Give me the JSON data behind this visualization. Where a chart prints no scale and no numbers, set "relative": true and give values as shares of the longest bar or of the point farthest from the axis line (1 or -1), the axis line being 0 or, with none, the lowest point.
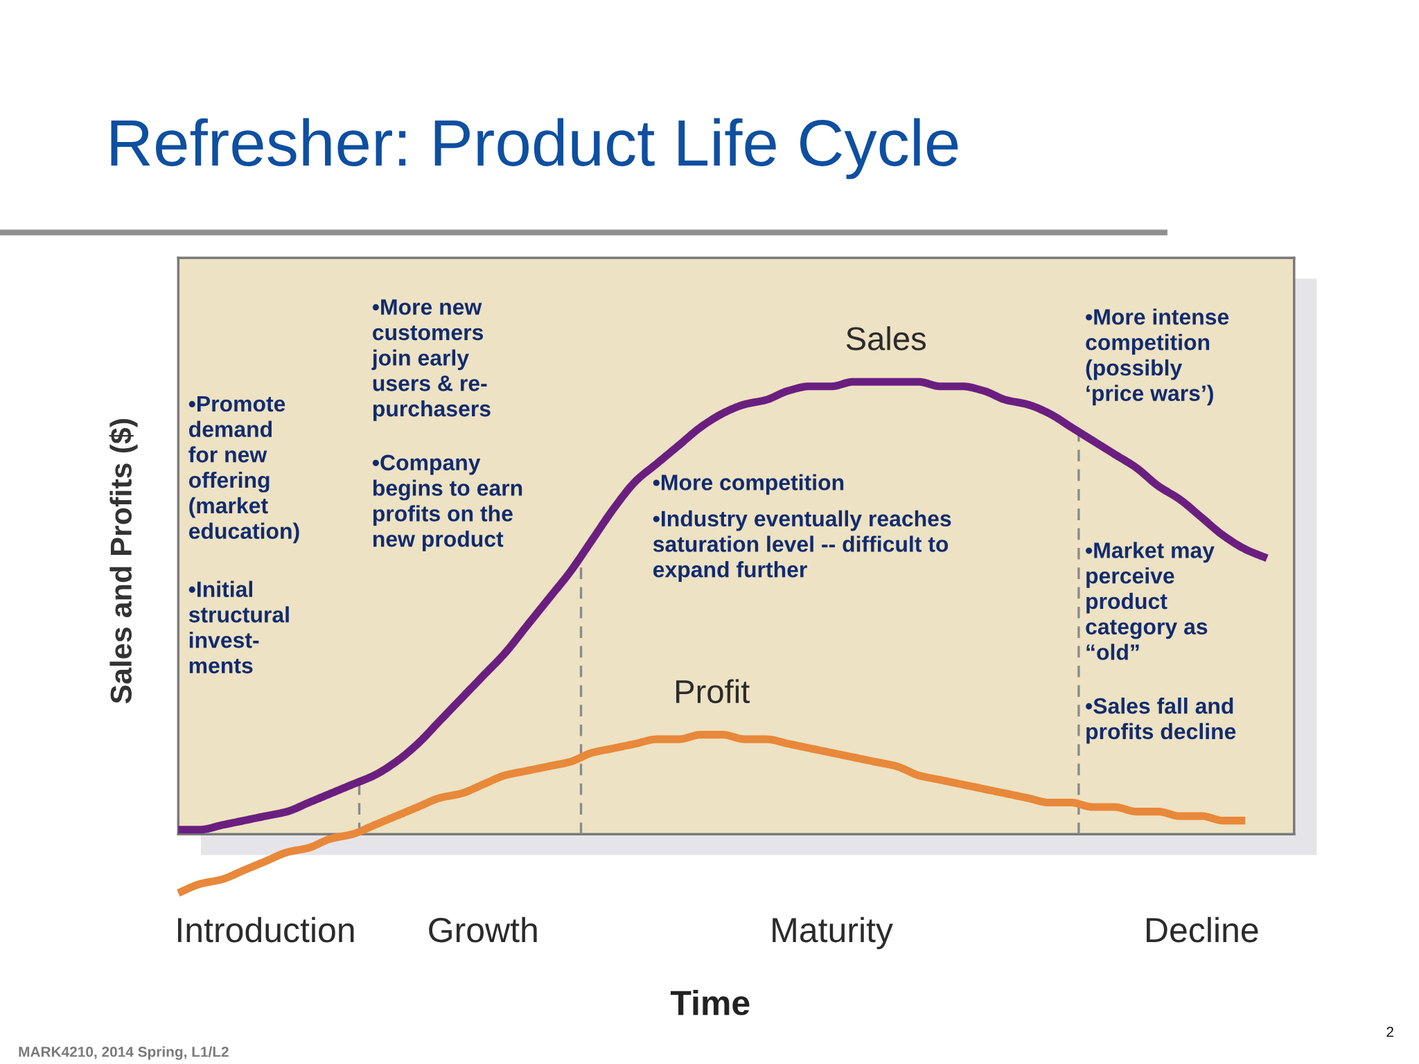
{
  "chart_data": {
    "type": "line",
    "title": "Refresher: Product Life Cycle",
    "xlabel": "Time",
    "ylabel": "Sales and Profits ($)",
    "relative": true,
    "categories": [
      null,
      null,
      null,
      null,
      "Introduction",
      null,
      null,
      null,
      null,
      null,
      null,
      null,
      null,
      null,
      "Growth",
      null,
      null,
      null,
      null,
      null,
      null,
      null,
      null,
      null,
      null,
      null,
      null,
      null,
      null,
      null,
      "Maturity",
      null,
      null,
      null,
      null,
      null,
      null,
      null,
      null,
      null,
      null,
      null,
      null,
      null,
      null,
      null,
      null,
      "Decline",
      null,
      null,
      null
    ],
    "series": [
      {
        "name": "Sales",
        "color": "#6a1f80",
        "values": [
          0.01,
          0.01,
          0.02,
          0.03,
          0.04,
          0.05,
          0.07,
          0.09,
          0.11,
          0.13,
          0.16,
          0.2,
          0.25,
          0.3,
          0.35,
          0.4,
          0.46,
          0.52,
          0.58,
          0.65,
          0.72,
          0.78,
          0.82,
          0.86,
          0.9,
          0.93,
          0.95,
          0.96,
          0.98,
          0.99,
          0.99,
          1,
          1,
          1,
          1,
          0.99,
          0.99,
          0.98,
          0.96,
          0.95,
          0.93,
          0.9,
          0.87,
          0.84,
          0.81,
          0.77,
          0.74,
          0.7,
          0.66,
          0.63,
          0.61
        ]
      },
      {
        "name": "Profit",
        "color": "#e8883a",
        "values": [
          -0.13,
          -0.11,
          -0.1,
          -0.08,
          -0.06,
          -0.04,
          -0.03,
          -0.01,
          0,
          0.02,
          0.04,
          0.06,
          0.08,
          0.09,
          0.11,
          0.13,
          0.14,
          0.15,
          0.16,
          0.18,
          0.19,
          0.2,
          0.21,
          0.21,
          0.22,
          0.22,
          0.21,
          0.21,
          0.2,
          0.19,
          0.18,
          0.17,
          0.16,
          0.15,
          0.13,
          0.12,
          0.11,
          0.1,
          0.09,
          0.08,
          0.07,
          0.07,
          0.06,
          0.06,
          0.05,
          0.05,
          0.04,
          0.04,
          0.03,
          0.03,
          null
        ]
      }
    ],
    "annotations": [
      "•Promote\ndemand\nfor new\noffering\n(market\neducation)",
      "•Initial\nstructural\ninvest-\nments",
      "•More new\ncustomers\njoin early\nusers & re-\npurchasers",
      "•Company\nbegins to earn\nprofits on the\nnew product",
      "•More competition",
      "•Industry eventually reaches\nsaturation level -- difficult to\nexpand further",
      "•More intense\ncompetition\n(possibly\n‘price wars’)",
      "•Market may\nperceive\nproduct\ncategory as\n“old”",
      "•Sales fall and\nprofits decline",
      "MARK4210, 2014 Spring, L1/L2",
      "2"
    ]
  }
}
